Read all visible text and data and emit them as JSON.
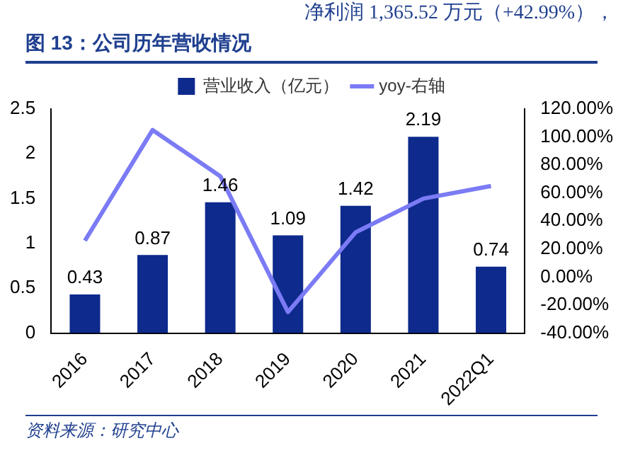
{
  "chart_data": {
    "type": "bar",
    "title": "图 13：公司历年营收情况",
    "annotations": [
      "净利润 1,365.52 万元（+42.99%），",
      "资料来源：研究中心"
    ],
    "categories": [
      "2016",
      "2017",
      "2018",
      "2019",
      "2020",
      "2021",
      "2022Q1"
    ],
    "series": [
      {
        "name": "营业收入（亿元）",
        "color": "#0d2a8c",
        "values": [
          0.43,
          0.87,
          1.46,
          1.09,
          1.42,
          2.19,
          0.74
        ],
        "value_labels": [
          "0.43",
          "0.87",
          "1.46",
          "1.09",
          "1.42",
          "2.19",
          "0.74"
        ]
      },
      {
        "name": "yoy-右轴",
        "type": "line",
        "axis": "y2",
        "color": "#7b7bf5",
        "values": [
          26,
          105,
          72,
          -25,
          32,
          56,
          65
        ]
      }
    ],
    "legend": "top",
    "grid": false,
    "marker": "none",
    "line_style": "solid",
    "ylim": [
      0,
      2.5
    ],
    "yticks": [
      0,
      0.5,
      1,
      1.5,
      2,
      2.5
    ],
    "y2lim": [
      -40,
      120
    ],
    "y2ticks": [
      {
        "value": -40,
        "label": "-40.00%"
      },
      {
        "value": -20,
        "label": "-20.00%"
      },
      {
        "value": 0,
        "label": "0.00%"
      },
      {
        "value": 20,
        "label": "20.00%"
      },
      {
        "value": 40,
        "label": "40.00%"
      },
      {
        "value": 60,
        "label": "60.00%"
      },
      {
        "value": 80,
        "label": "80.00%"
      },
      {
        "value": 100,
        "label": "100.00%"
      },
      {
        "value": 120,
        "label": "120.00%"
      }
    ]
  }
}
